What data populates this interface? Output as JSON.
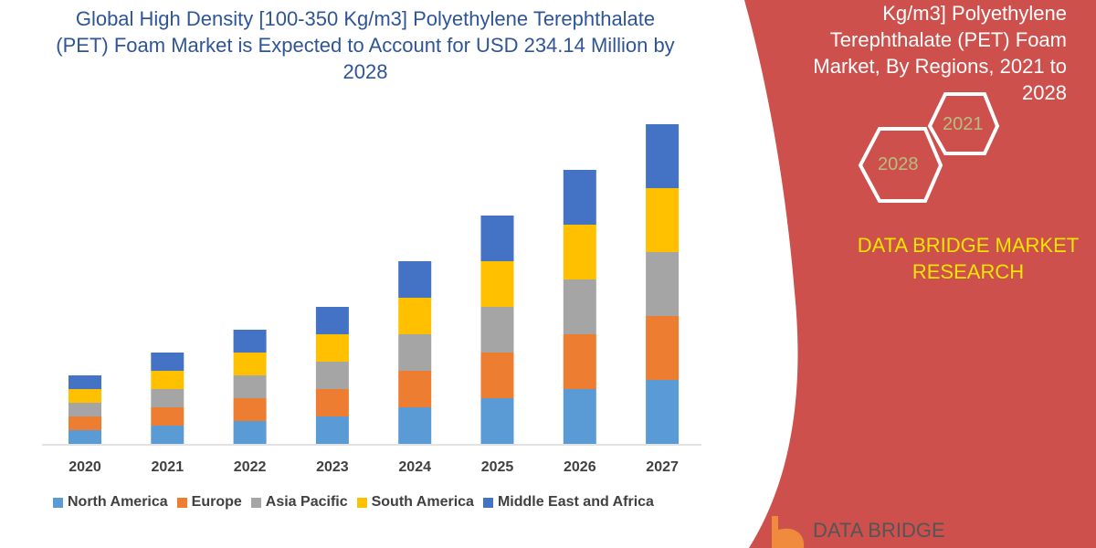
{
  "chart_data": {
    "type": "bar",
    "stacked": true,
    "title": "Global High Density [100-350 Kg/m3] Polyethylene Terephthalate (PET) Foam Market is Expected to Account for USD 234.14 Million by 2028",
    "categories": [
      "2020",
      "2021",
      "2022",
      "2023",
      "2024",
      "2025",
      "2026",
      "2027"
    ],
    "series": [
      {
        "name": "North America",
        "color": "#5b9bd5",
        "values": [
          15,
          20,
          25,
          30,
          40,
          50,
          60,
          70
        ]
      },
      {
        "name": "Europe",
        "color": "#ed7d31",
        "values": [
          15,
          20,
          25,
          30,
          40,
          50,
          60,
          70
        ]
      },
      {
        "name": "Asia Pacific",
        "color": "#a5a5a5",
        "values": [
          15,
          20,
          25,
          30,
          40,
          50,
          60,
          70
        ]
      },
      {
        "name": "South America",
        "color": "#ffc000",
        "values": [
          15,
          20,
          25,
          30,
          40,
          50,
          60,
          70
        ]
      },
      {
        "name": "Middle East and Africa",
        "color": "#4472c4",
        "values": [
          15,
          20,
          25,
          30,
          40,
          50,
          60,
          70
        ]
      }
    ],
    "xlabel": "",
    "ylabel": "",
    "grid": false,
    "legend_placement": "bottom"
  },
  "side_panel": {
    "title_lines": [
      "Kg/m3] Polyethylene",
      "Terephthalate (PET) Foam",
      "Market, By Regions, 2021 to",
      "2028"
    ],
    "hex_years": [
      "2021",
      "2028"
    ],
    "brand_lines": [
      "DATA BRIDGE MARKET",
      "RESEARCH"
    ],
    "panel_color": "#cd504c"
  },
  "logo": {
    "text": "DATA BRIDGE"
  }
}
